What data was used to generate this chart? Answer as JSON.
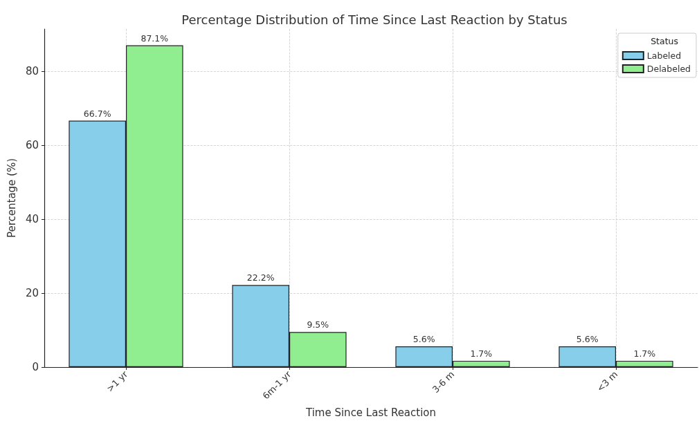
{
  "chart_data": {
    "type": "bar",
    "title": "Percentage Distribution of Time Since Last Reaction by Status",
    "xlabel": "Time Since Last Reaction",
    "ylabel": "Percentage (%)",
    "legend_title": "Status",
    "categories": [
      ">1 yr",
      "6m-1 yr",
      "3-6 m",
      "<3 m"
    ],
    "series": [
      {
        "name": "Labeled",
        "color": "#87ceeb",
        "values": [
          66.7,
          22.2,
          5.6,
          5.6
        ],
        "value_labels": [
          "66.7%",
          "22.2%",
          "5.6%",
          "5.6%"
        ]
      },
      {
        "name": "Delabeled",
        "color": "#90ee90",
        "values": [
          87.1,
          9.5,
          1.7,
          1.7
        ],
        "value_labels": [
          "87.1%",
          "9.5%",
          "1.7%",
          "1.7%"
        ]
      }
    ],
    "ylim": [
      0,
      91.5
    ],
    "yticks": [
      0,
      20,
      40,
      60,
      80
    ],
    "grid": true,
    "legend": "top right"
  }
}
